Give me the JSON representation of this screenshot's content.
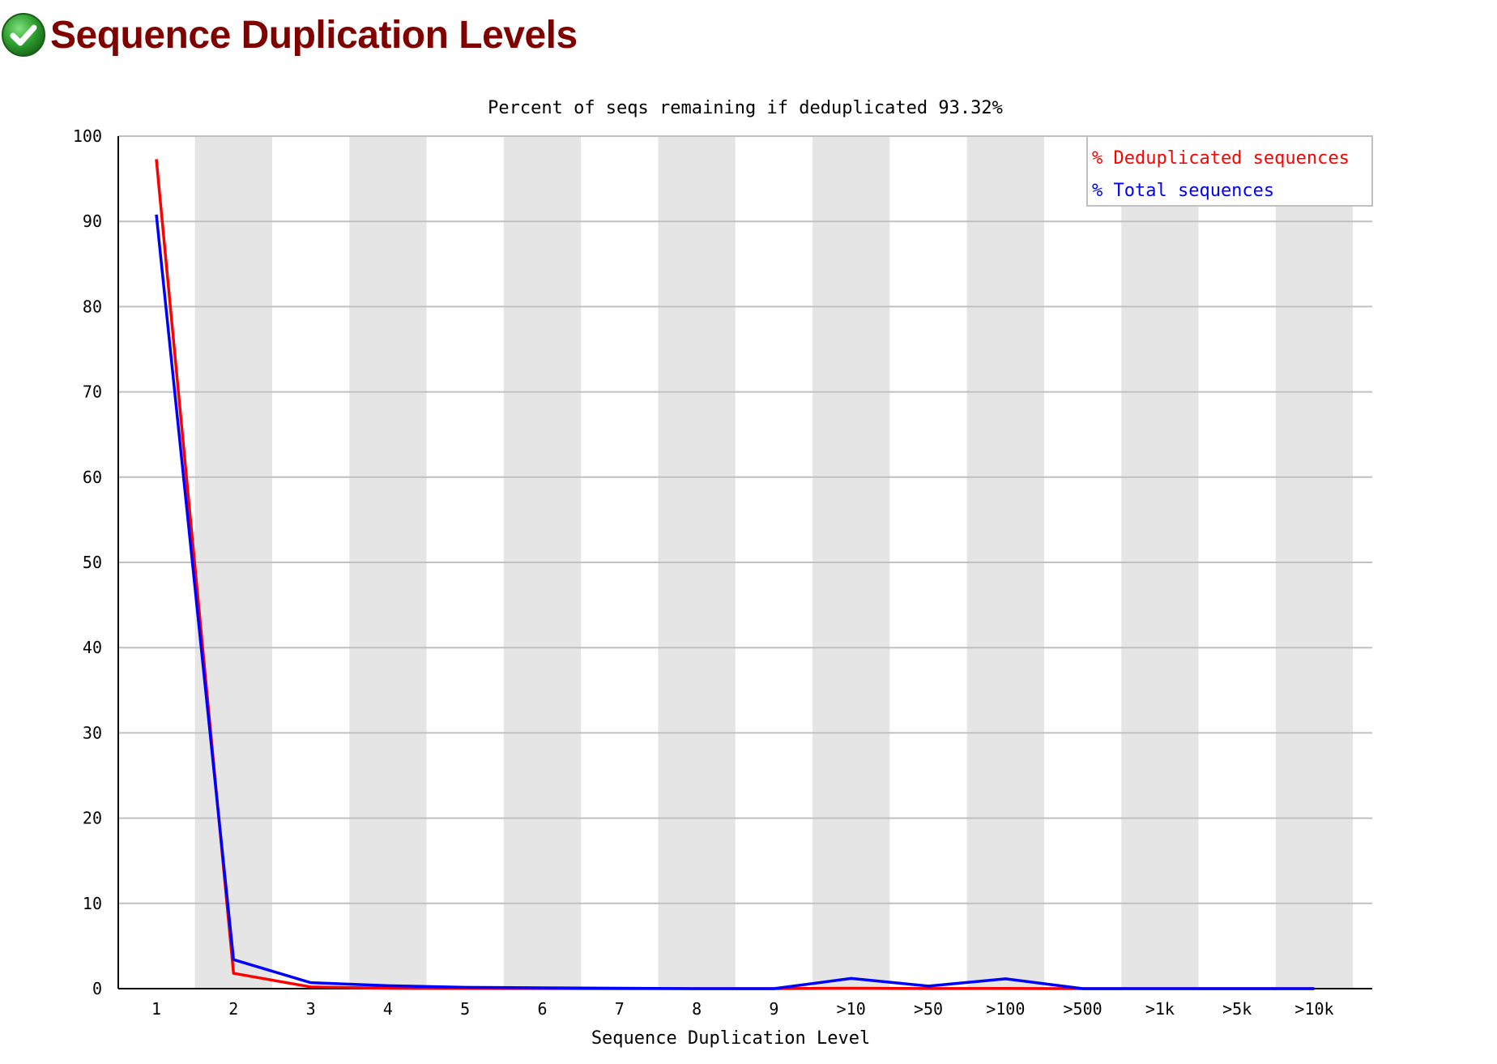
{
  "header": {
    "title": "Sequence Duplication Levels",
    "status_icon": "check-circle-icon",
    "status_color": "#2e9e2e"
  },
  "chart_data": {
    "type": "line",
    "title": "Percent of seqs remaining if deduplicated 93.32%",
    "xlabel": "Sequence Duplication Level",
    "ylabel": "",
    "ylim": [
      0,
      100
    ],
    "yticks": [
      0,
      10,
      20,
      30,
      40,
      50,
      60,
      70,
      80,
      90,
      100
    ],
    "categories": [
      "1",
      "2",
      "3",
      "4",
      "5",
      "6",
      "7",
      "8",
      "9",
      ">10",
      ">50",
      ">100",
      ">500",
      ">1k",
      ">5k",
      ">10k"
    ],
    "series": [
      {
        "name": "% Deduplicated sequences",
        "color": "#ff0000",
        "values": [
          97.3,
          1.8,
          0.2,
          0.05,
          0.02,
          0.01,
          0.0,
          0.0,
          0.0,
          0.05,
          0.01,
          0.02,
          0.0,
          0.0,
          0.0,
          0.0
        ]
      },
      {
        "name": "% Total sequences",
        "color": "#0000ff",
        "values": [
          90.8,
          3.4,
          0.7,
          0.35,
          0.15,
          0.1,
          0.05,
          0.0,
          0.0,
          1.2,
          0.3,
          1.15,
          0.0,
          0.0,
          0.0,
          0.0
        ]
      }
    ],
    "grid": true,
    "legend": "top-right",
    "colors": {
      "band": "#e5e5e5",
      "grid": "#c0c0c0",
      "axis": "#000000"
    }
  }
}
